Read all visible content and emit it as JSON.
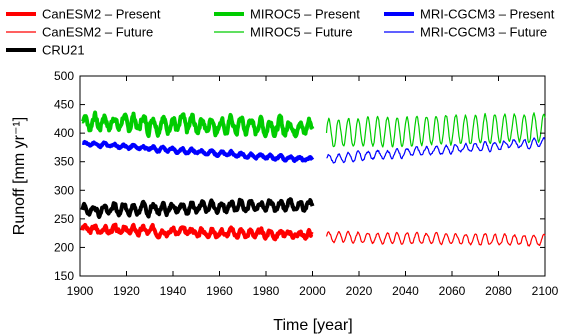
{
  "chart_data": {
    "type": "line",
    "xlabel": "Time [year]",
    "ylabel": "Runoff [mm yr⁻¹]",
    "xlim": [
      1900,
      2100
    ],
    "ylim": [
      150,
      500
    ],
    "xticks": [
      "1900",
      "1920",
      "1940",
      "1960",
      "1980",
      "2000",
      "2020",
      "2040",
      "2060",
      "2080",
      "2100"
    ],
    "yticks": [
      "150",
      "200",
      "250",
      "300",
      "350",
      "400",
      "450",
      "500"
    ],
    "grid": false,
    "legend": "top",
    "series": [
      {
        "name": "CanESM2 – Present",
        "color": "#ff0000",
        "width": 4,
        "period": [
          1901,
          2000
        ],
        "mean_start": 232,
        "mean_end": 222,
        "cycle_amp": 5,
        "noise": 9,
        "seed": 3,
        "summary": {
          "min": 195,
          "max": 250
        }
      },
      {
        "name": "MIROC5 – Present",
        "color": "#00cc00",
        "width": 4,
        "period": [
          1901,
          2000
        ],
        "mean_start": 420,
        "mean_end": 410,
        "cycle_amp": 12,
        "noise": 14,
        "seed": 7,
        "summary": {
          "min": 365,
          "max": 455
        }
      },
      {
        "name": "MRI-CGCM3 – Present",
        "color": "#0000ff",
        "width": 4,
        "period": [
          1901,
          2000
        ],
        "mean_start": 382,
        "mean_end": 353,
        "cycle_amp": 3,
        "noise": 4,
        "seed": 11,
        "summary": {
          "min": 345,
          "max": 390
        }
      },
      {
        "name": "CanESM2 – Future",
        "color": "#ff0000",
        "width": 1.2,
        "period": [
          2006,
          2100
        ],
        "mean_start": 218,
        "mean_end": 212,
        "cycle_amp": 9,
        "noise": 4,
        "seed": 5,
        "summary": {
          "min": 200,
          "max": 235
        }
      },
      {
        "name": "MIROC5 – Future",
        "color": "#00cc00",
        "width": 1.2,
        "period": [
          2006,
          2100
        ],
        "mean_start": 400,
        "mean_end": 410,
        "cycle_amp": 25,
        "noise": 5,
        "seed": 13,
        "summary": {
          "min": 365,
          "max": 450
        }
      },
      {
        "name": "MRI-CGCM3 – Future",
        "color": "#0000ff",
        "width": 1.2,
        "period": [
          2006,
          2100
        ],
        "mean_start": 355,
        "mean_end": 385,
        "cycle_amp": 7,
        "noise": 5,
        "seed": 17,
        "summary": {
          "min": 345,
          "max": 395
        }
      },
      {
        "name": "CRU21",
        "color": "#000000",
        "width": 4,
        "period": [
          1901,
          2000
        ],
        "mean_start": 265,
        "mean_end": 275,
        "cycle_amp": 8,
        "noise": 9,
        "seed": 19,
        "summary": {
          "min": 240,
          "max": 305
        }
      }
    ]
  }
}
